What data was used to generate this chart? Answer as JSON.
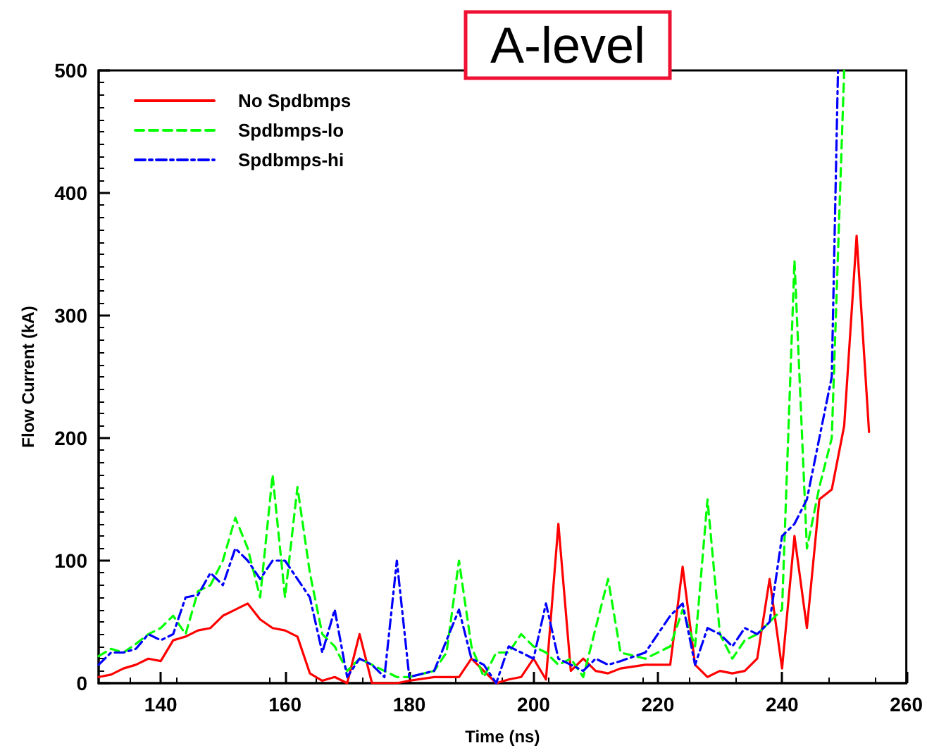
{
  "chart_data": {
    "type": "line",
    "title": "A-level",
    "xlabel": "Time (ns)",
    "ylabel": "Flow Current (kA)",
    "xlim": [
      130,
      260
    ],
    "xticks": [
      140,
      160,
      180,
      200,
      220,
      240,
      260
    ],
    "ylim": [
      0,
      500
    ],
    "yticks": [
      0,
      100,
      200,
      300,
      400,
      500
    ],
    "grid": false,
    "legend": "top left",
    "marker": "none",
    "series": [
      {
        "name": "No Spdbmps",
        "color": "#ff0000",
        "line_style": "solid",
        "x": [
          130,
          132,
          134,
          136,
          138,
          140,
          142,
          144,
          146,
          148,
          150,
          152,
          154,
          156,
          158,
          160,
          162,
          164,
          166,
          168,
          170,
          172,
          174,
          176,
          178,
          180,
          184,
          188,
          190,
          192,
          194,
          196,
          198,
          200,
          202,
          204,
          206,
          208,
          210,
          212,
          214,
          218,
          222,
          224,
          226,
          228,
          230,
          232,
          234,
          236,
          238,
          240,
          242,
          244,
          246,
          248,
          250,
          252,
          254
        ],
        "values": [
          5,
          7,
          12,
          15,
          20,
          18,
          35,
          38,
          43,
          45,
          55,
          60,
          65,
          52,
          45,
          43,
          38,
          8,
          2,
          5,
          0,
          40,
          0,
          0,
          0,
          2,
          5,
          5,
          20,
          10,
          0,
          3,
          5,
          20,
          3,
          130,
          10,
          20,
          10,
          8,
          12,
          15,
          15,
          95,
          15,
          5,
          10,
          8,
          10,
          20,
          85,
          12,
          120,
          45,
          150,
          158,
          210,
          365,
          205
        ]
      },
      {
        "name": "Spdbmps-lo",
        "color": "#00ff00",
        "line_style": "dashed",
        "x": [
          130,
          132,
          134,
          136,
          138,
          140,
          142,
          144,
          146,
          148,
          150,
          152,
          154,
          156,
          158,
          160,
          162,
          164,
          166,
          168,
          170,
          172,
          174,
          176,
          178,
          180,
          184,
          186,
          188,
          190,
          192,
          194,
          196,
          198,
          200,
          202,
          204,
          206,
          208,
          210,
          212,
          214,
          218,
          222,
          224,
          226,
          228,
          230,
          232,
          234,
          236,
          238,
          240,
          242,
          244,
          246,
          248,
          250
        ],
        "values": [
          22,
          28,
          25,
          32,
          40,
          45,
          55,
          40,
          75,
          80,
          100,
          135,
          110,
          70,
          170,
          70,
          160,
          90,
          40,
          30,
          10,
          20,
          15,
          10,
          5,
          5,
          10,
          25,
          100,
          30,
          5,
          25,
          25,
          40,
          30,
          25,
          15,
          20,
          5,
          45,
          85,
          25,
          20,
          30,
          60,
          30,
          150,
          40,
          20,
          35,
          40,
          50,
          60,
          345,
          110,
          160,
          200,
          500
        ]
      },
      {
        "name": "Spdbmps-hi",
        "color": "#0000ff",
        "line_style": "dashdot",
        "x": [
          130,
          132,
          134,
          136,
          138,
          140,
          142,
          144,
          146,
          148,
          150,
          152,
          154,
          156,
          158,
          160,
          162,
          164,
          166,
          168,
          170,
          172,
          174,
          176,
          178,
          180,
          184,
          188,
          190,
          192,
          194,
          196,
          198,
          200,
          202,
          204,
          206,
          208,
          210,
          212,
          214,
          218,
          222,
          224,
          226,
          228,
          230,
          232,
          234,
          236,
          238,
          240,
          242,
          244,
          246,
          248,
          249
        ],
        "values": [
          15,
          25,
          25,
          28,
          40,
          35,
          40,
          70,
          72,
          90,
          80,
          110,
          100,
          85,
          100,
          100,
          85,
          70,
          25,
          60,
          5,
          20,
          15,
          5,
          100,
          5,
          10,
          60,
          20,
          15,
          0,
          30,
          25,
          20,
          65,
          20,
          15,
          10,
          20,
          15,
          18,
          25,
          55,
          65,
          15,
          45,
          40,
          30,
          45,
          40,
          50,
          120,
          130,
          150,
          200,
          250,
          500
        ]
      }
    ]
  }
}
